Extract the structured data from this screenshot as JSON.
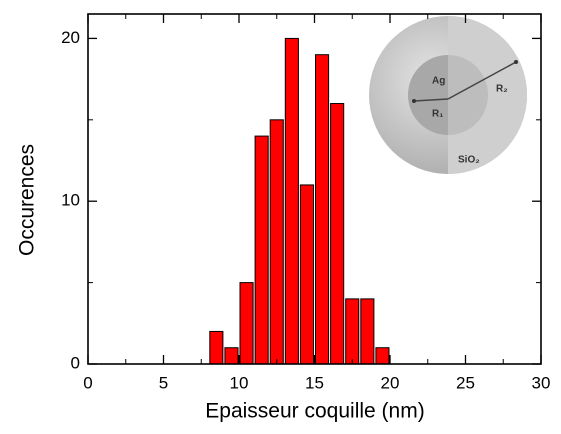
{
  "chart_data": {
    "type": "histogram",
    "x_label": "Epaisseur coquille (nm)",
    "y_label": "Occurences",
    "bins": [
      8,
      9,
      10,
      11,
      12,
      13,
      14,
      15,
      16,
      17,
      18,
      19,
      20
    ],
    "values": [
      2,
      1,
      5,
      14,
      15,
      20,
      11,
      19,
      16,
      4,
      4,
      1
    ],
    "color": "#ff0000",
    "xlim": [
      0,
      30
    ],
    "xticks": [
      0,
      5,
      10,
      15,
      20,
      25,
      30
    ],
    "ylim": [
      0,
      21.5
    ],
    "yticks": [
      0,
      10,
      20
    ],
    "grid": false,
    "inset_labels": [
      "Ag",
      "R₁",
      "R₂",
      "SiO₂"
    ]
  }
}
